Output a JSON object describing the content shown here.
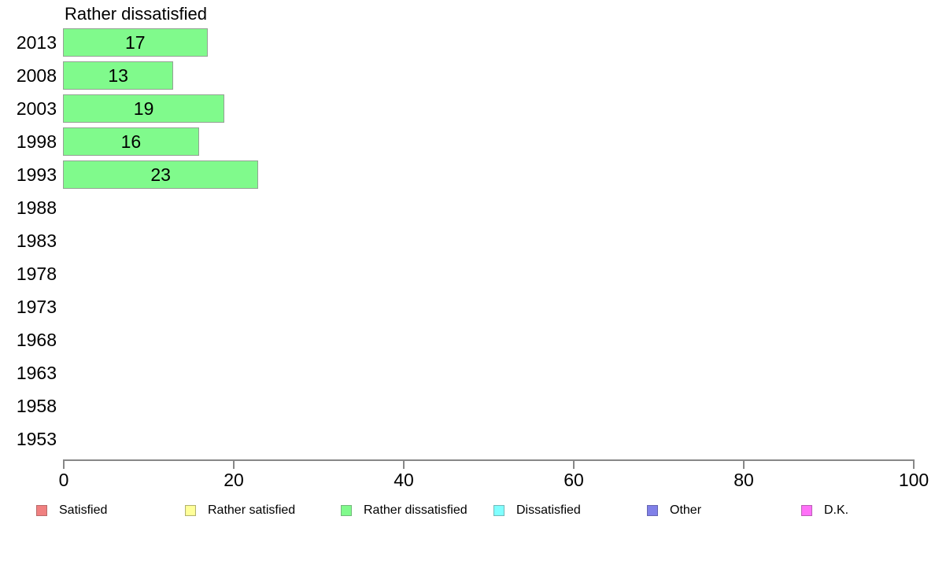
{
  "chart_data": {
    "type": "bar",
    "orientation": "horizontal",
    "title": "Rather dissatisfied",
    "categories": [
      "2013",
      "2008",
      "2003",
      "1998",
      "1993",
      "1988",
      "1983",
      "1978",
      "1973",
      "1968",
      "1963",
      "1958",
      "1953"
    ],
    "values": [
      17,
      13,
      19,
      16,
      23,
      null,
      null,
      null,
      null,
      null,
      null,
      null,
      null
    ],
    "xlabel": "",
    "ylabel": "",
    "xlim": [
      0,
      100
    ],
    "x_ticks": [
      0,
      20,
      40,
      60,
      80,
      100
    ],
    "grid": false,
    "bar_color": "#80fa8c",
    "bar_border_color": "#94a294",
    "axis_color": "#878787",
    "legend_position": "bottom",
    "legend": [
      {
        "label": "Satisfied",
        "color": "#f08080",
        "border": "#b86a6a"
      },
      {
        "label": "Rather satisfied",
        "color": "#ffff99",
        "border": "#b2b26e"
      },
      {
        "label": "Rather dissatisfied",
        "color": "#80fa8c",
        "border": "#74b87c"
      },
      {
        "label": "Dissatisfied",
        "color": "#80ffff",
        "border": "#74b8b8"
      },
      {
        "label": "Other",
        "color": "#8080e8",
        "border": "#6666b0"
      },
      {
        "label": "D.K.",
        "color": "#ff70f8",
        "border": "#b860b3"
      }
    ]
  }
}
